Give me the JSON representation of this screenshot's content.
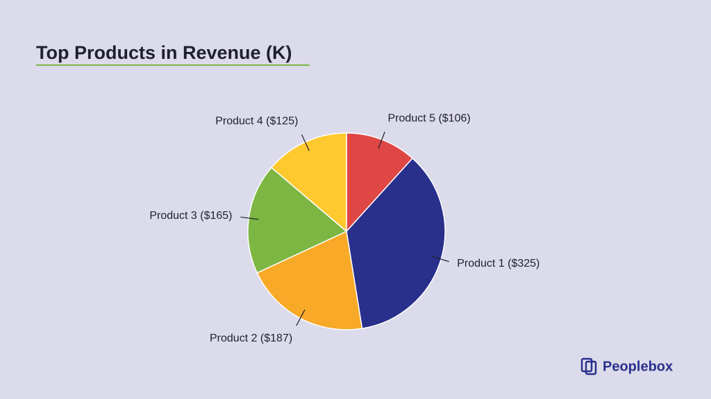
{
  "chart_data": {
    "type": "pie",
    "title": "Top Products in Revenue (K)",
    "categories": [
      "Product 5 ($106)",
      "Product 1 ($325)",
      "Product 2 ($187)",
      "Product 3 ($165)",
      "Product 4 ($125)"
    ],
    "values": [
      106,
      325,
      187,
      165,
      125
    ],
    "colors": [
      "#de4744",
      "#28308c",
      "#f7a927",
      "#7db643",
      "#fdc92e"
    ]
  },
  "footer": {
    "brand": "Peoplebox"
  }
}
